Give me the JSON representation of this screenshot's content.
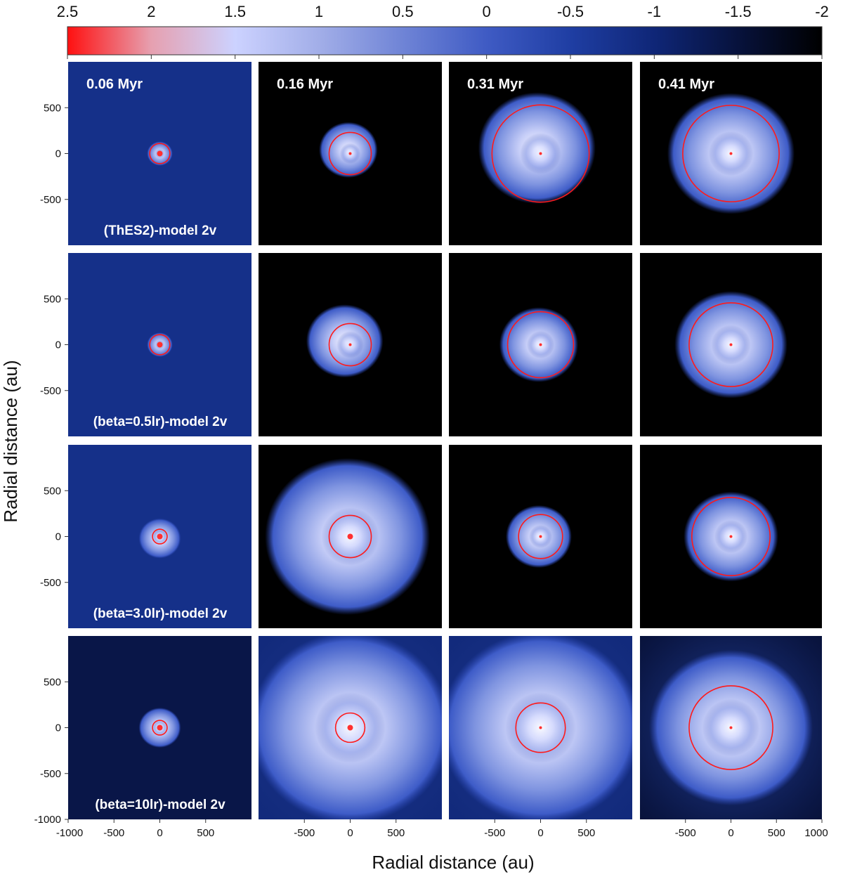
{
  "chart_data": {
    "type": "heatmap",
    "colorbar": {
      "ticks": [
        "2.5",
        "2",
        "1.5",
        "1",
        "0.5",
        "0",
        "-0.5",
        "-1",
        "-1.5",
        "-2"
      ],
      "range": [
        2.5,
        -2
      ],
      "stops": [
        {
          "value": 2.5,
          "color": "#ff1010"
        },
        {
          "value": 2.0,
          "color": "#e6a0b0"
        },
        {
          "value": 1.5,
          "color": "#ccd2ff"
        },
        {
          "value": 1.0,
          "color": "#a2aee8"
        },
        {
          "value": 0.5,
          "color": "#6f84d6"
        },
        {
          "value": 0.0,
          "color": "#3f5bc4"
        },
        {
          "value": -0.5,
          "color": "#1f3ea3"
        },
        {
          "value": -1.0,
          "color": "#0f2677"
        },
        {
          "value": -1.5,
          "color": "#07123c"
        },
        {
          "value": -2.0,
          "color": "#000000"
        }
      ]
    },
    "time_labels": [
      "0.06 Myr",
      "0.16 Myr",
      "0.31 Myr",
      "0.41 Myr"
    ],
    "model_labels": [
      "(ThES2)-model 2v",
      "(beta=0.5lr)-model 2v",
      "(beta=3.0lr)-model 2v",
      "(beta=10lr)-model 2v"
    ],
    "xlabel": "Radial distance (au)",
    "ylabel": "Radial distance (au)",
    "axis_range": [
      -1000,
      1000
    ],
    "x_ticks_first": [
      "-1000",
      "-500",
      "0",
      "500"
    ],
    "x_ticks_other": [
      "-500",
      "0",
      "500"
    ],
    "x_ticks_last": [
      "-500",
      "0",
      "500",
      "1000"
    ],
    "y_ticks": [
      "500",
      "0",
      "-500"
    ],
    "y_tick_bottom": "-1000",
    "circle_color": "#ff1a1a",
    "circle_radius_au": [
      [
        110,
        230,
        530,
        530
      ],
      [
        110,
        230,
        360,
        460
      ],
      [
        80,
        230,
        240,
        430
      ],
      [
        80,
        160,
        270,
        460
      ]
    ],
    "background_level": [
      [
        -0.8,
        -2.0,
        -2.0,
        -2.0
      ],
      [
        -0.8,
        -2.0,
        -2.0,
        -2.0
      ],
      [
        -0.8,
        -2.0,
        -2.0,
        -2.0
      ],
      [
        -1.4,
        -0.9,
        -0.9,
        -1.6
      ]
    ]
  }
}
